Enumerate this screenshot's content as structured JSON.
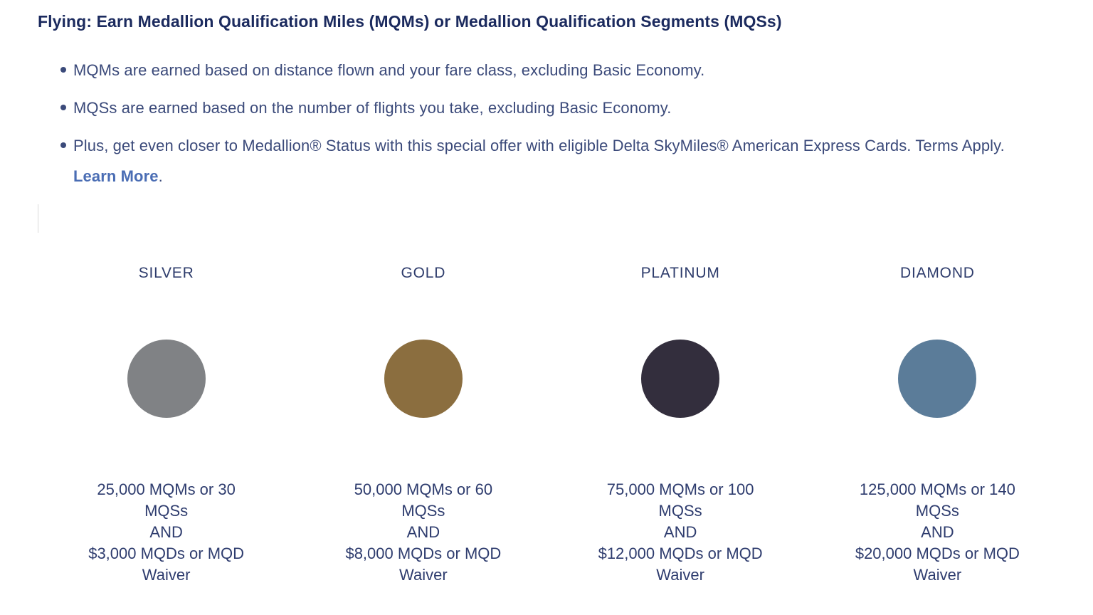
{
  "header": {
    "title": "Flying: Earn Medallion Qualification Miles (MQMs) or Medallion Qualification Segments (MQSs)"
  },
  "bullets": {
    "item1": "MQMs are earned based on distance flown and your fare class, excluding Basic Economy.",
    "item2": "MQSs are earned based on the number of flights you take, excluding Basic Economy.",
    "item3": "Plus, get even closer to Medallion® Status with this special offer with eligible Delta SkyMiles® American Express Cards. Terms Apply.",
    "learn_more_label": "Learn More",
    "learn_more_suffix": "."
  },
  "colors": {
    "heading_navy": "#1b2a5e",
    "body_navy": "#3b4a7a",
    "link_blue": "#4a6db4",
    "silver_circle": "#808285",
    "gold_circle": "#8b6e3f",
    "platinum_circle": "#332e3d",
    "diamond_circle": "#5b7c99"
  },
  "tiers": [
    {
      "name": "SILVER",
      "color": "#808285",
      "req_lines": [
        "25,000 MQMs or 30",
        "MQSs",
        "AND",
        "$3,000 MQDs or MQD",
        "Waiver"
      ]
    },
    {
      "name": "GOLD",
      "color": "#8b6e3f",
      "req_lines": [
        "50,000 MQMs or 60",
        "MQSs",
        "AND",
        "$8,000 MQDs or MQD",
        "Waiver"
      ]
    },
    {
      "name": "PLATINUM",
      "color": "#332e3d",
      "req_lines": [
        "75,000 MQMs or 100",
        "MQSs",
        "AND",
        "$12,000 MQDs or MQD",
        "Waiver"
      ]
    },
    {
      "name": "DIAMOND",
      "color": "#5b7c99",
      "req_lines": [
        "125,000 MQMs or 140",
        "MQSs",
        "AND",
        "$20,000 MQDs or MQD",
        "Waiver"
      ]
    }
  ]
}
